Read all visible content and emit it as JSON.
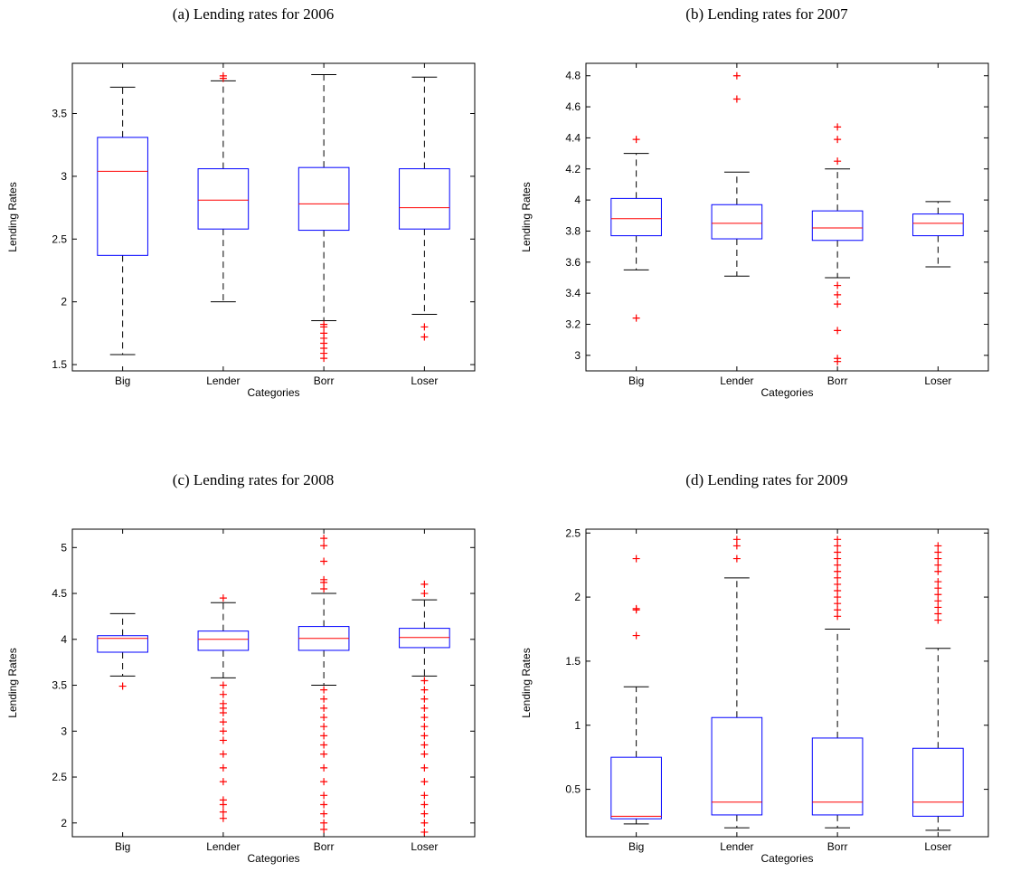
{
  "chart_data": [
    {
      "type": "box",
      "title": "(a)  Lending rates for 2006",
      "xlabel": "Categories",
      "ylabel": "Lending Rates",
      "categories": [
        "Big",
        "Lender",
        "Borr",
        "Loser"
      ],
      "ylim": [
        1.45,
        3.9
      ],
      "yticks": [
        1.5,
        2,
        2.5,
        3,
        3.5
      ],
      "ytick_labels": [
        "1.5",
        "2",
        "2.5",
        "3",
        "3.5"
      ],
      "boxes": [
        {
          "category": "Big",
          "whisker_low": 1.58,
          "q1": 2.37,
          "median": 3.04,
          "q3": 3.31,
          "whisker_high": 3.71,
          "outliers": []
        },
        {
          "category": "Lender",
          "whisker_low": 2.0,
          "q1": 2.58,
          "median": 2.81,
          "q3": 3.06,
          "whisker_high": 3.76,
          "outliers": [
            3.78,
            3.8
          ]
        },
        {
          "category": "Borr",
          "whisker_low": 1.85,
          "q1": 2.57,
          "median": 2.78,
          "q3": 3.07,
          "whisker_high": 3.81,
          "outliers": [
            1.55,
            1.59,
            1.63,
            1.67,
            1.71,
            1.75,
            1.8,
            1.82
          ]
        },
        {
          "category": "Loser",
          "whisker_low": 1.9,
          "q1": 2.58,
          "median": 2.75,
          "q3": 3.06,
          "whisker_high": 3.79,
          "outliers": [
            1.72,
            1.8
          ]
        }
      ]
    },
    {
      "type": "box",
      "title": "(b)  Lending rates for 2007",
      "xlabel": "Categories",
      "ylabel": "Lending Rates",
      "categories": [
        "Big",
        "Lender",
        "Borr",
        "Loser"
      ],
      "ylim": [
        2.9,
        4.88
      ],
      "yticks": [
        3,
        3.2,
        3.4,
        3.6,
        3.8,
        4,
        4.2,
        4.4,
        4.6,
        4.8
      ],
      "ytick_labels": [
        "3",
        "3.2",
        "3.4",
        "3.6",
        "3.8",
        "4",
        "4.2",
        "4.4",
        "4.6",
        "4.8"
      ],
      "boxes": [
        {
          "category": "Big",
          "whisker_low": 3.55,
          "q1": 3.77,
          "median": 3.88,
          "q3": 4.01,
          "whisker_high": 4.3,
          "outliers": [
            3.24,
            4.39
          ]
        },
        {
          "category": "Lender",
          "whisker_low": 3.51,
          "q1": 3.75,
          "median": 3.85,
          "q3": 3.97,
          "whisker_high": 4.18,
          "outliers": [
            4.65,
            4.8
          ]
        },
        {
          "category": "Borr",
          "whisker_low": 3.5,
          "q1": 3.74,
          "median": 3.82,
          "q3": 3.93,
          "whisker_high": 4.2,
          "outliers": [
            2.96,
            2.98,
            3.16,
            3.33,
            3.39,
            3.45,
            4.25,
            4.39,
            4.47
          ]
        },
        {
          "category": "Loser",
          "whisker_low": 3.57,
          "q1": 3.77,
          "median": 3.85,
          "q3": 3.91,
          "whisker_high": 3.99,
          "outliers": []
        }
      ]
    },
    {
      "type": "box",
      "title": "(c)  Lending rates for 2008",
      "xlabel": "Categories",
      "ylabel": "Lending Rates",
      "categories": [
        "Big",
        "Lender",
        "Borr",
        "Loser"
      ],
      "ylim": [
        1.85,
        5.2
      ],
      "yticks": [
        2,
        2.5,
        3,
        3.5,
        4,
        4.5,
        5
      ],
      "ytick_labels": [
        "2",
        "2.5",
        "3",
        "3.5",
        "4",
        "4.5",
        "5"
      ],
      "boxes": [
        {
          "category": "Big",
          "whisker_low": 3.6,
          "q1": 3.86,
          "median": 4.01,
          "q3": 4.04,
          "whisker_high": 4.28,
          "outliers": [
            3.49
          ]
        },
        {
          "category": "Lender",
          "whisker_low": 3.58,
          "q1": 3.88,
          "median": 4.0,
          "q3": 4.09,
          "whisker_high": 4.4,
          "outliers": [
            2.05,
            2.12,
            2.2,
            2.25,
            2.45,
            2.6,
            2.75,
            2.9,
            3.0,
            3.1,
            3.2,
            3.25,
            3.3,
            3.4,
            3.5,
            4.45
          ]
        },
        {
          "category": "Borr",
          "whisker_low": 3.5,
          "q1": 3.88,
          "median": 4.01,
          "q3": 4.14,
          "whisker_high": 4.5,
          "outliers": [
            1.93,
            2.0,
            2.1,
            2.2,
            2.3,
            2.45,
            2.6,
            2.75,
            2.85,
            2.95,
            3.05,
            3.15,
            3.25,
            3.35,
            3.45,
            4.55,
            4.62,
            4.65,
            4.85,
            5.02,
            5.1
          ]
        },
        {
          "category": "Loser",
          "whisker_low": 3.6,
          "q1": 3.91,
          "median": 4.02,
          "q3": 4.12,
          "whisker_high": 4.43,
          "outliers": [
            1.9,
            2.0,
            2.1,
            2.2,
            2.3,
            2.45,
            2.6,
            2.75,
            2.85,
            2.95,
            3.05,
            3.15,
            3.25,
            3.35,
            3.45,
            3.55,
            4.5,
            4.6
          ]
        }
      ]
    },
    {
      "type": "box",
      "title": "(d)  Lending rates for 2009",
      "xlabel": "Categories",
      "ylabel": "Lending Rates",
      "categories": [
        "Big",
        "Lender",
        "Borr",
        "Loser"
      ],
      "ylim": [
        0.13,
        2.53
      ],
      "yticks": [
        0.5,
        1,
        1.5,
        2,
        2.5
      ],
      "ytick_labels": [
        "0.5",
        "1",
        "1.5",
        "2",
        "2.5"
      ],
      "boxes": [
        {
          "category": "Big",
          "whisker_low": 0.23,
          "q1": 0.27,
          "median": 0.29,
          "q3": 0.75,
          "whisker_high": 1.3,
          "outliers": [
            1.7,
            1.9,
            1.91,
            2.3
          ]
        },
        {
          "category": "Lender",
          "whisker_low": 0.2,
          "q1": 0.3,
          "median": 0.4,
          "q3": 1.06,
          "whisker_high": 2.15,
          "outliers": [
            2.3,
            2.4,
            2.45
          ]
        },
        {
          "category": "Borr",
          "whisker_low": 0.2,
          "q1": 0.3,
          "median": 0.4,
          "q3": 0.9,
          "whisker_high": 1.75,
          "outliers": [
            1.85,
            1.9,
            1.95,
            2.0,
            2.05,
            2.1,
            2.15,
            2.2,
            2.25,
            2.3,
            2.35,
            2.4,
            2.45
          ]
        },
        {
          "category": "Loser",
          "whisker_low": 0.18,
          "q1": 0.29,
          "median": 0.4,
          "q3": 0.82,
          "whisker_high": 1.6,
          "outliers": [
            1.82,
            1.87,
            1.92,
            1.97,
            2.02,
            2.07,
            2.12,
            2.2,
            2.25,
            2.3,
            2.35,
            2.4
          ]
        }
      ]
    }
  ]
}
